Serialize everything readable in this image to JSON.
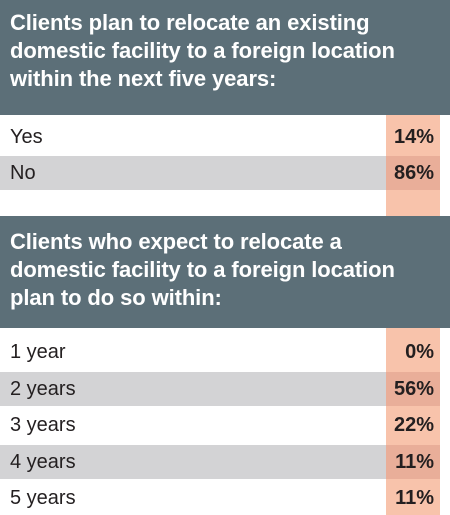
{
  "chart_data": [
    {
      "type": "table",
      "title": "Clients plan to relocate an existing domestic facility to a foreign location within the next five years:",
      "categories": [
        "Yes",
        "No"
      ],
      "values": [
        "14%",
        "86%"
      ]
    },
    {
      "type": "table",
      "title": "Clients who expect to relocate a domestic facility to a foreign location plan to do so within:",
      "categories": [
        "1 year",
        "2 years",
        "3 years",
        "4 years",
        "5 years"
      ],
      "values": [
        "0%",
        "56%",
        "22%",
        "11%",
        "11%"
      ]
    }
  ],
  "colors": {
    "header_bg": "#5c6f78",
    "header_text": "#ffffff",
    "row_shade": "#d3d3d5",
    "pct_col": "#f8c3ab",
    "pct_col_shaded": "#e9ae99"
  }
}
